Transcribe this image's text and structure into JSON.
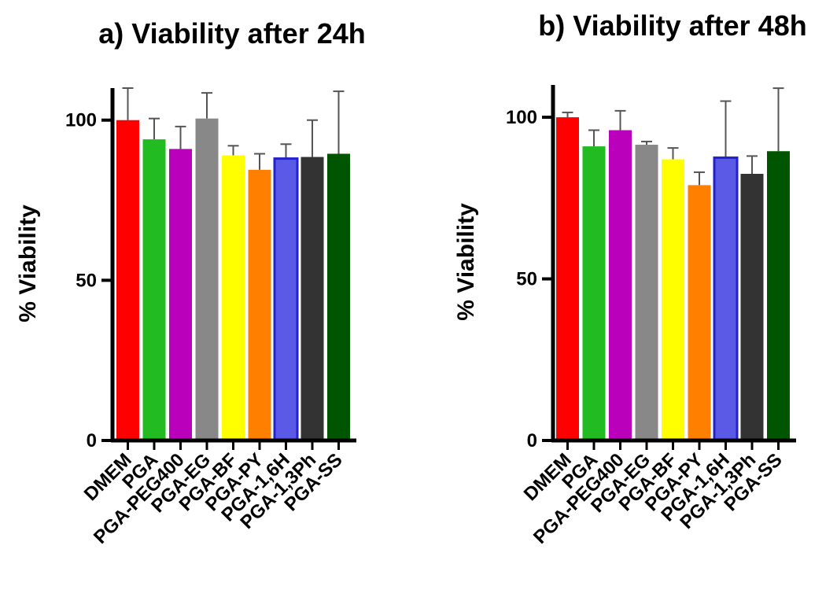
{
  "chart_data": [
    {
      "type": "bar",
      "title": "a) Viability after 24h",
      "ylabel": "% Viability",
      "xlabel": "",
      "ylim": [
        0,
        110
      ],
      "yticks": [
        0,
        50,
        100
      ],
      "grid": false,
      "categories": [
        "DMEM",
        "PGA",
        "PGA-PEG400",
        "PGA-EG",
        "PGA-BF",
        "PGA-PY",
        "PGA-1,6H",
        "PGA-1,3Ph",
        "PGA-SS"
      ],
      "values": [
        100,
        94,
        91,
        100.5,
        89,
        84.5,
        88,
        88.5,
        89.5
      ],
      "error_upper": [
        10,
        6.5,
        7,
        8,
        3,
        5,
        4.5,
        11.5,
        19.5
      ],
      "colors": [
        "#ff0000",
        "#22bb22",
        "#bb00bb",
        "#888888",
        "#ffff00",
        "#ff8000",
        "#5a5ae6",
        "#333333",
        "#005500"
      ]
    },
    {
      "type": "bar",
      "title": "b) Viability after 48h",
      "ylabel": "% Viability",
      "xlabel": "",
      "ylim": [
        0,
        110
      ],
      "yticks": [
        0,
        50,
        100
      ],
      "grid": false,
      "categories": [
        "DMEM",
        "PGA",
        "PGA-PEG400",
        "PGA-EG",
        "PGA-BF",
        "PGA-PY",
        "PGA-1,6H",
        "PGA-1,3Ph",
        "PGA-SS"
      ],
      "values": [
        100,
        91,
        96,
        91.5,
        87,
        79,
        87.5,
        82.5,
        89.5
      ],
      "error_upper": [
        1.5,
        5,
        6,
        1,
        3.5,
        4,
        17.5,
        5.5,
        19.5
      ],
      "colors": [
        "#ff0000",
        "#22bb22",
        "#bb00bb",
        "#888888",
        "#ffff00",
        "#ff8000",
        "#5a5ae6",
        "#333333",
        "#005500"
      ]
    }
  ]
}
